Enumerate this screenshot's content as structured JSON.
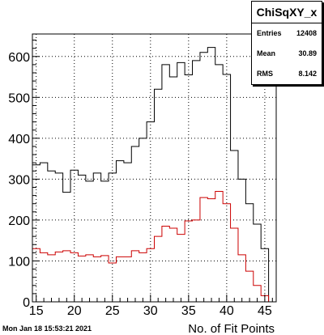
{
  "chart_data": {
    "type": "histogram",
    "title": "",
    "xlabel": "No. of Fit Points",
    "ylabel": "",
    "xlim": [
      14.5,
      46.5
    ],
    "ylim": [
      0,
      655
    ],
    "x_ticks": [
      15,
      20,
      25,
      30,
      35,
      40,
      45
    ],
    "y_ticks": [
      0,
      100,
      200,
      300,
      400,
      500,
      600
    ],
    "grid": true,
    "bin_width": 1,
    "bin_centers": [
      15,
      16,
      17,
      18,
      19,
      20,
      21,
      22,
      23,
      24,
      25,
      26,
      27,
      28,
      29,
      30,
      31,
      32,
      33,
      34,
      35,
      36,
      37,
      38,
      39,
      40,
      41,
      42,
      43,
      44,
      45,
      46
    ],
    "series": [
      {
        "color": "#000000",
        "values": [
          335,
          340,
          320,
          315,
          268,
          322,
          310,
          295,
          315,
          295,
          315,
          345,
          340,
          380,
          400,
          440,
          520,
          580,
          550,
          585,
          555,
          590,
          610,
          622,
          580,
          556,
          370,
          300,
          240,
          190,
          130,
          0
        ]
      },
      {
        "color": "#cc0000",
        "values": [
          130,
          120,
          115,
          122,
          125,
          120,
          112,
          115,
          110,
          113,
          95,
          110,
          110,
          125,
          120,
          130,
          160,
          185,
          180,
          165,
          198,
          200,
          255,
          252,
          270,
          240,
          180,
          115,
          75,
          40,
          15,
          0
        ]
      }
    ]
  },
  "stats": {
    "title": "ChiSqXY_x",
    "rows": [
      {
        "label": "Entries",
        "value": "12408"
      },
      {
        "label": "Mean",
        "value": "30.89"
      },
      {
        "label": "RMS",
        "value": "8.142"
      }
    ]
  },
  "footer": {
    "timestamp": "Mon Jan 18 15:53:21 2021"
  }
}
